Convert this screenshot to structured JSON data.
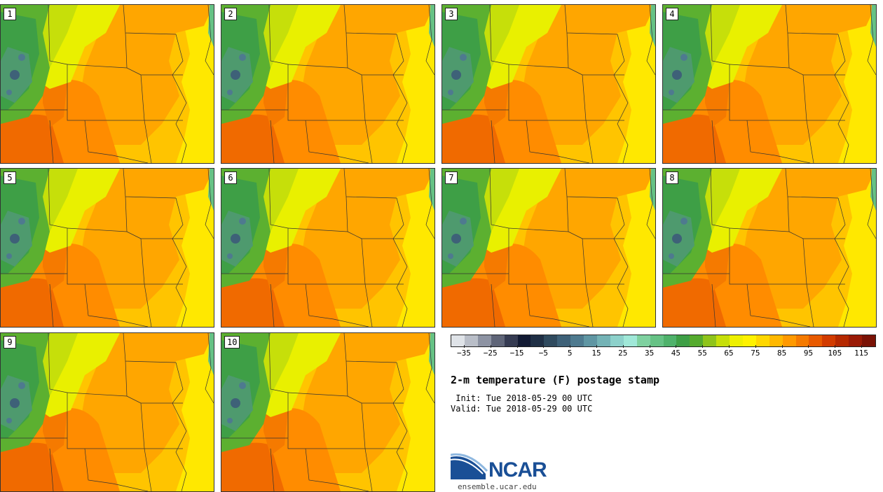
{
  "panels": [
    {
      "label": "1"
    },
    {
      "label": "2"
    },
    {
      "label": "3"
    },
    {
      "label": "4"
    },
    {
      "label": "5"
    },
    {
      "label": "6"
    },
    {
      "label": "7"
    },
    {
      "label": "8"
    },
    {
      "label": "9"
    },
    {
      "label": "10"
    }
  ],
  "colorbar": {
    "colors": [
      "#dfe3e8",
      "#b9bec8",
      "#8d93a3",
      "#5f6578",
      "#353b52",
      "#121a33",
      "#1f2f45",
      "#2f4a5e",
      "#3e6178",
      "#4e7a8f",
      "#5f96a3",
      "#74b3b6",
      "#8dd1cb",
      "#a0e8d8",
      "#7fd1a0",
      "#66c285",
      "#4fb26b",
      "#3e9f46",
      "#55ab2e",
      "#8fc41b",
      "#c6df0a",
      "#eef000",
      "#fff200",
      "#ffd700",
      "#ffb800",
      "#ff9900",
      "#f57a00",
      "#e85a00",
      "#d23b00",
      "#b52800",
      "#9a1a06",
      "#7a1206"
    ],
    "tick_labels": [
      "−35",
      "−25",
      "−15",
      "−5",
      "5",
      "15",
      "25",
      "35",
      "45",
      "55",
      "65",
      "75",
      "85",
      "95",
      "105",
      "115"
    ]
  },
  "title": "2-m temperature (F) postage stamp",
  "init": " Init: Tue 2018-05-29 00 UTC",
  "valid": "Valid: Tue 2018-05-29 00 UTC",
  "logo_text": "NCAR",
  "url": "ensemble.ucar.edu"
}
